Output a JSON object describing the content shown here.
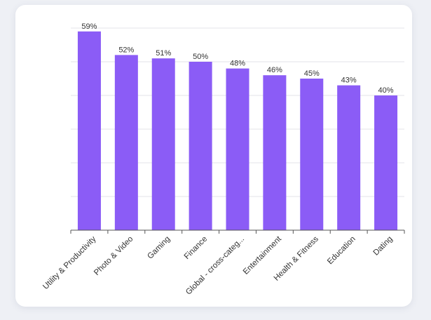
{
  "colors": {
    "bar": "#8b5cf6",
    "background": "#eef0f5",
    "card": "#ffffff"
  },
  "chart_data": {
    "type": "bar",
    "title": "",
    "xlabel": "",
    "ylabel": "",
    "ylim": [
      0,
      60
    ],
    "grid": true,
    "categories": [
      "Utility & Productivity",
      "Photo & Video",
      "Gaming",
      "Finance",
      "Global - cross-categ...",
      "Entertainment",
      "Health & Fitness",
      "Education",
      "Dating"
    ],
    "values": [
      59,
      52,
      51,
      50,
      48,
      46,
      45,
      43,
      40
    ],
    "value_labels": [
      "59%",
      "52%",
      "51%",
      "50%",
      "48%",
      "46%",
      "45%",
      "43%",
      "40%"
    ]
  }
}
